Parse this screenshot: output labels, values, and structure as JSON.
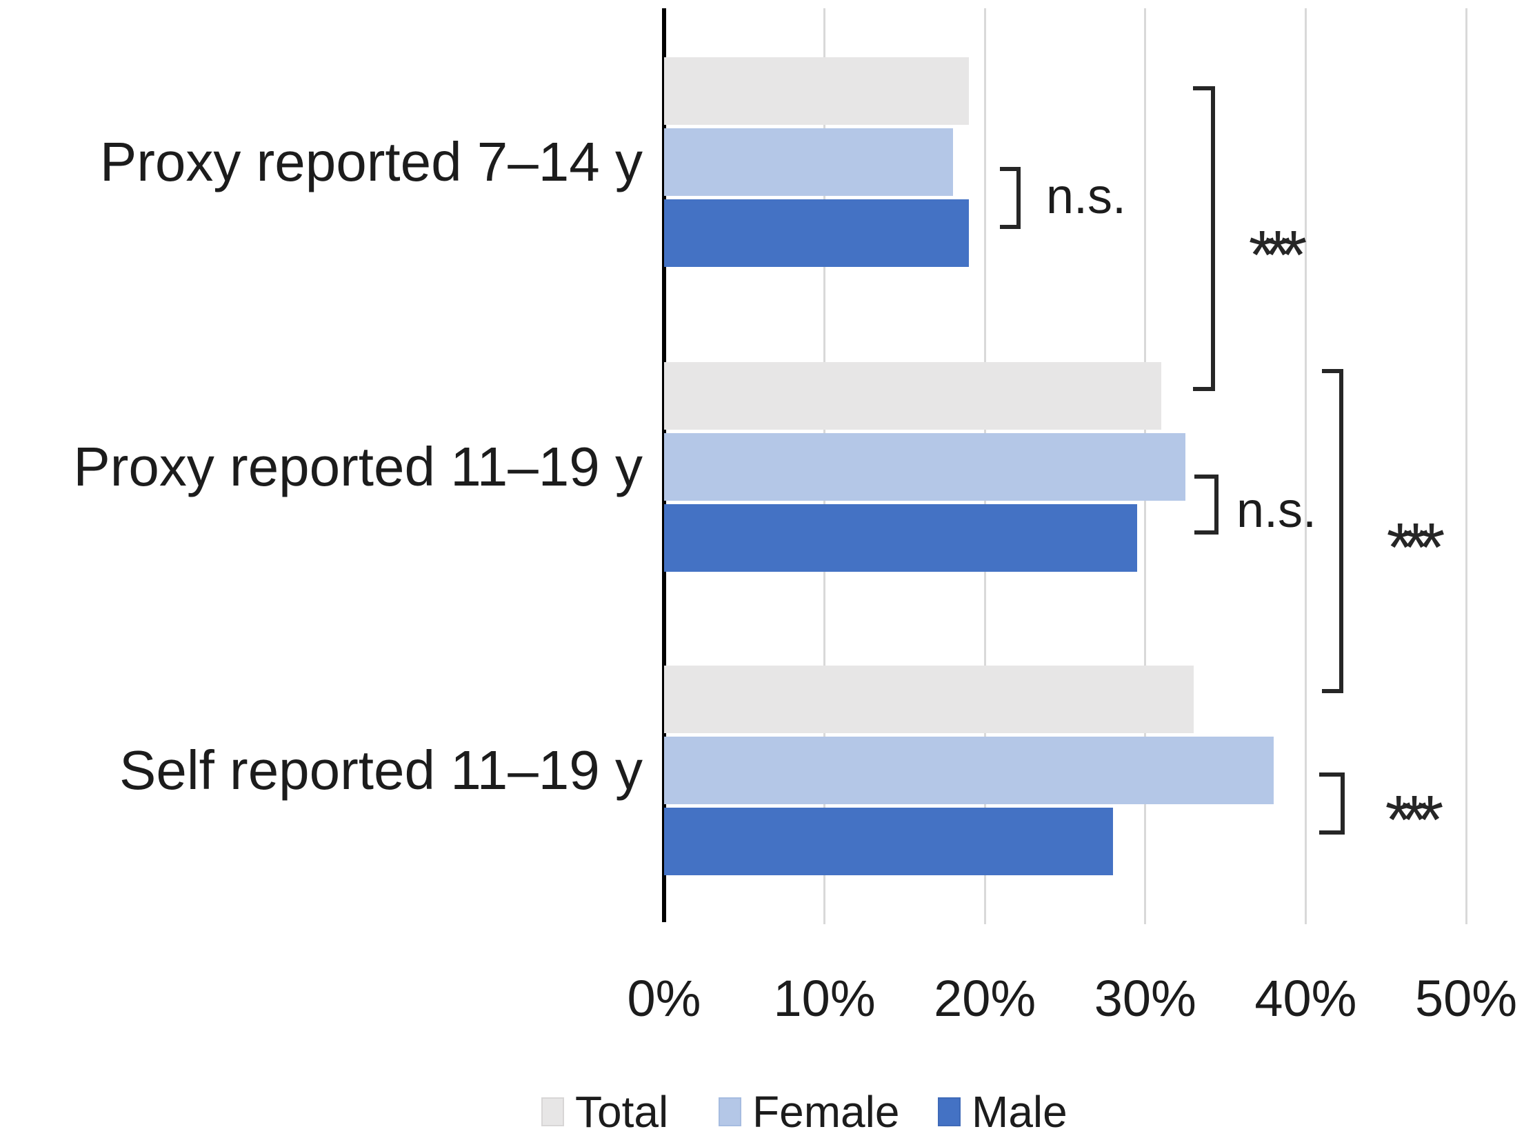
{
  "chart_data": {
    "type": "bar",
    "orientation": "horizontal",
    "title": "",
    "xlabel": "",
    "ylabel": "",
    "categories": [
      "Proxy reported 7–14 y",
      "Proxy reported 11–19 y",
      "Self reported 11–19 y"
    ],
    "series": [
      {
        "name": "Total",
        "color": "#e7e6e6",
        "border": "#d8d6d6",
        "values": [
          19,
          31,
          33
        ]
      },
      {
        "name": "Female",
        "color": "#b4c7e7",
        "border": "#a6bce0",
        "values": [
          18,
          32.5,
          38
        ]
      },
      {
        "name": "Male",
        "color": "#4472c4",
        "border": "#3f6ab8",
        "values": [
          19,
          29.5,
          28
        ]
      }
    ],
    "x_axis": {
      "min": 0,
      "max": 50,
      "unit": "%",
      "ticks": [
        "0%",
        "10%",
        "20%",
        "30%",
        "40%",
        "50%"
      ]
    },
    "gridlines": true,
    "axis_color": "#000000",
    "gridline_color": "#d9d9d9",
    "legend": {
      "position": "bottom",
      "entries": [
        "Total",
        "Female",
        "Male"
      ]
    },
    "annotations": [
      {
        "label": "n.s.",
        "compares": "Female vs Male, Proxy reported 7–14 y"
      },
      {
        "label": "***",
        "compares": "Total, Proxy reported 7–14 y vs Proxy reported 11–19 y"
      },
      {
        "label": "n.s.",
        "compares": "Female vs Male, Proxy reported 11–19 y"
      },
      {
        "label": "***",
        "compares": "Total, Proxy reported 11–19 y vs Self reported 11–19 y"
      },
      {
        "label": "***",
        "compares": "Female vs Male, Self reported 11–19 y"
      }
    ]
  }
}
